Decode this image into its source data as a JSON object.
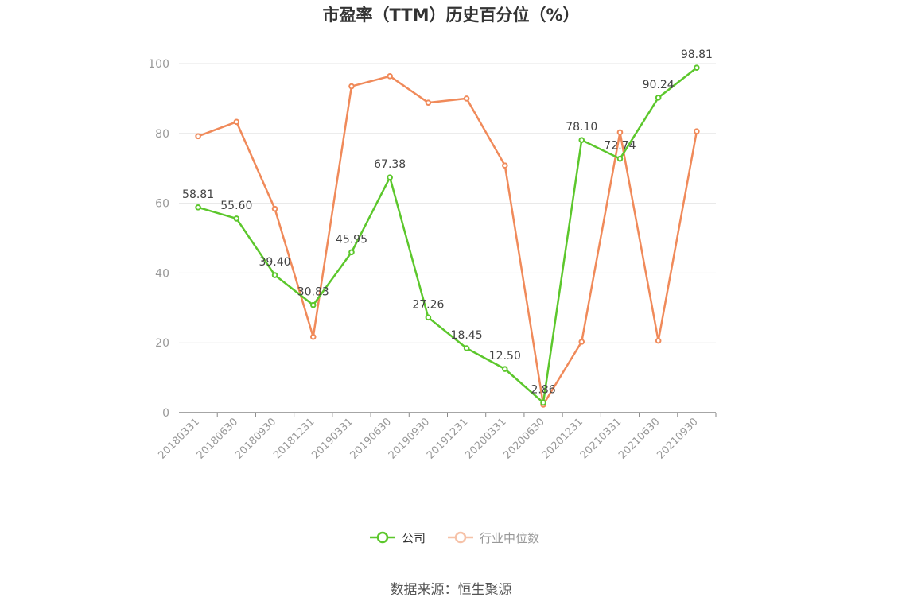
{
  "chart_data": {
    "type": "line",
    "title": "市盈率（TTM）历史百分位（%）",
    "categories": [
      "20180331",
      "20180630",
      "20180930",
      "20181231",
      "20190331",
      "20190630",
      "20190930",
      "20191231",
      "20200331",
      "20200630",
      "20201231",
      "20210331",
      "20210630",
      "20210930"
    ],
    "series": [
      {
        "name": "公司",
        "color": "#5cc72c",
        "values": [
          58.81,
          55.6,
          39.4,
          30.83,
          45.95,
          67.38,
          27.26,
          18.45,
          12.5,
          2.86,
          78.1,
          72.74,
          90.24,
          98.81
        ],
        "labels": [
          "58.81",
          "55.60",
          "39.40",
          "30.83",
          "45.95",
          "67.38",
          "27.26",
          "18.45",
          "12.50",
          "2.86",
          "78.10",
          "72.74",
          "90.24",
          "98.81"
        ]
      },
      {
        "name": "行业中位数",
        "color": "#f08a5a",
        "values": [
          79.2,
          83.3,
          58.4,
          21.7,
          93.5,
          96.4,
          88.8,
          90.0,
          70.8,
          2.3,
          20.3,
          80.3,
          20.6,
          80.6
        ]
      }
    ],
    "yticks": [
      "0",
      "20",
      "40",
      "60",
      "80",
      "100"
    ],
    "ylim": [
      0,
      100
    ],
    "grid": true,
    "legend": "bottom-center",
    "source": "数据来源：恒生聚源"
  }
}
